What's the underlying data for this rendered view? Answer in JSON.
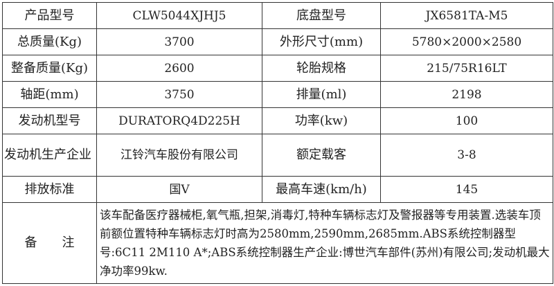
{
  "rows": [
    {
      "l1": "产品型号",
      "v1": "CLW5044XJHJ5",
      "l2": "底盘型号",
      "v2": "JX6581TA-M5"
    },
    {
      "l1": "总质量(Kg)",
      "v1": "3700",
      "l2": "外形尺寸(mm)",
      "v2": "5780×2000×2580"
    },
    {
      "l1": "整备质量(Kg)",
      "v1": "2600",
      "l2": "轮胎规格",
      "v2": "215/75R16LT"
    },
    {
      "l1": "轴距(mm)",
      "v1": "3750",
      "l2": "排量(ml)",
      "v2": "2198"
    },
    {
      "l1": "发动机型号",
      "v1": "DURATORQ4D225H",
      "l2": "功率(kw)",
      "v2": "100"
    },
    {
      "l1": "发动机生产企业",
      "v1": "江铃汽车股份有限公司",
      "l2": "额定载客",
      "v2": "3-8"
    },
    {
      "l1": "排放标准",
      "v1": "国Ⅴ",
      "l2": "最高车速(km/h)",
      "v2": "145"
    }
  ],
  "remarks": {
    "label": "备　　注",
    "text": "该车配备医疗器械柜,氧气瓶,担架,消毒灯,特种车辆标志灯及警报器等专用装置.选装车顶前额位置特种车辆标志灯时高为2580mm,2590mm,2685mm.ABS系统控制器型号:6C11 2M110 A*;ABS系统控制器生产企业:博世汽车部件(苏州)有限公司;发动机最大净功率99kw."
  }
}
